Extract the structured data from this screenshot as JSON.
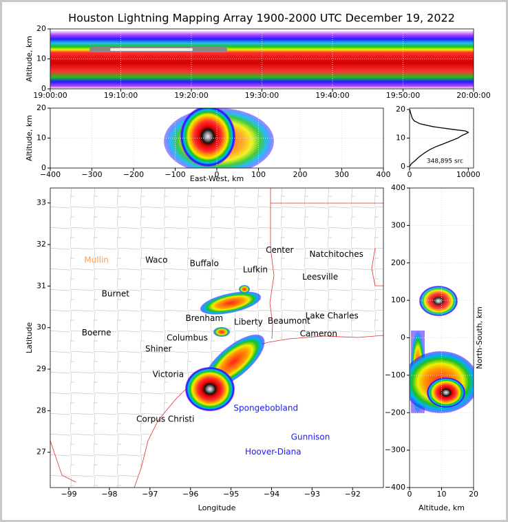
{
  "title": "Houston Lightning Mapping Array 1900-2000 UTC December 19, 2022",
  "chart_data": [
    {
      "type": "density",
      "ylabel": "Altitude, km",
      "xlim": [
        0,
        60
      ],
      "xticks": [
        {
          "value": 0,
          "label": "19:00:00"
        },
        {
          "value": 10,
          "label": "19:10:00"
        },
        {
          "value": 20,
          "label": "19:20:00"
        },
        {
          "value": 30,
          "label": "19:30:00"
        },
        {
          "value": 40,
          "label": "19:40:00"
        },
        {
          "value": 50,
          "label": "19:50:00"
        },
        {
          "value": 60,
          "label": "20:00:00"
        }
      ],
      "ylim": [
        0,
        20
      ],
      "yticks": [
        0,
        10,
        20
      ],
      "grid": true
    },
    {
      "type": "density",
      "xlabel": "East-West, km",
      "ylabel": "Altitude, km",
      "xlim": [
        -400,
        400
      ],
      "xticks": [
        {
          "value": -400,
          "label": "−400"
        },
        {
          "value": -300,
          "label": "−300"
        },
        {
          "value": -200,
          "label": "−200"
        },
        {
          "value": -100,
          "label": "−100"
        },
        0,
        100,
        200,
        300,
        400
      ],
      "ylim": [
        0,
        20
      ],
      "yticks": [
        0,
        10,
        20
      ],
      "grid": true
    },
    {
      "type": "line",
      "annotation": "348,895 src",
      "xlim": [
        0,
        10900
      ],
      "xticks": [
        0,
        10000
      ],
      "ylim": [
        -0.5,
        20.5
      ],
      "yticks": [
        0,
        10,
        20
      ],
      "grid": true,
      "series": [
        {
          "color": "#000000",
          "x": [
            0,
            1,
            2,
            3,
            4,
            5,
            6,
            7,
            8,
            9,
            10,
            11,
            11.5,
            12,
            12.5,
            13,
            14,
            15,
            16,
            17,
            18,
            19,
            20
          ],
          "values": [
            0,
            300,
            900,
            1400,
            2000,
            2700,
            3500,
            4500,
            5800,
            7000,
            8200,
            9000,
            9600,
            10000,
            9500,
            7500,
            4000,
            1800,
            800,
            450,
            300,
            150,
            50
          ]
        }
      ]
    },
    {
      "type": "map",
      "xlabel": "Longitude",
      "ylabel": "Latitude",
      "xlim": [
        -99.46,
        -91.24
      ],
      "xticks": [
        {
          "value": -99,
          "label": "−99"
        },
        {
          "value": -98,
          "label": "−98"
        },
        {
          "value": -97,
          "label": "−97"
        },
        {
          "value": -96,
          "label": "−96"
        },
        {
          "value": -95,
          "label": "−95"
        },
        {
          "value": -94,
          "label": "−94"
        },
        {
          "value": -93,
          "label": "−93"
        },
        {
          "value": -92,
          "label": "−92"
        }
      ],
      "ylim": [
        26.15,
        33.36
      ],
      "yticks": [
        27,
        28,
        29,
        30,
        31,
        32,
        33
      ],
      "grid": false,
      "places": [
        {
          "name": "Mullin",
          "lon": -98.32,
          "lat": 31.62,
          "color": "#f4a05a"
        },
        {
          "name": "Waco",
          "lon": -96.84,
          "lat": 31.62,
          "color": "#000000"
        },
        {
          "name": "Buffalo",
          "lon": -95.66,
          "lat": 31.54,
          "color": "#000000"
        },
        {
          "name": "Lufkin",
          "lon": -94.4,
          "lat": 31.39,
          "color": "#000000"
        },
        {
          "name": "Center",
          "lon": -93.8,
          "lat": 31.86,
          "color": "#000000"
        },
        {
          "name": "Natchitoches",
          "lon": -92.4,
          "lat": 31.76,
          "color": "#000000"
        },
        {
          "name": "Leesville",
          "lon": -92.8,
          "lat": 31.21,
          "color": "#000000"
        },
        {
          "name": "Burnet",
          "lon": -97.85,
          "lat": 30.81,
          "color": "#000000"
        },
        {
          "name": "Brenham",
          "lon": -95.66,
          "lat": 30.22,
          "color": "#000000"
        },
        {
          "name": "Liberty",
          "lon": -94.57,
          "lat": 30.13,
          "color": "#000000"
        },
        {
          "name": "Beaumont",
          "lon": -93.57,
          "lat": 30.15,
          "color": "#000000"
        },
        {
          "name": "Lake Charles",
          "lon": -92.51,
          "lat": 30.28,
          "color": "#000000"
        },
        {
          "name": "Cameron",
          "lon": -92.84,
          "lat": 29.85,
          "color": "#000000"
        },
        {
          "name": "Boerne",
          "lon": -98.32,
          "lat": 29.87,
          "color": "#000000"
        },
        {
          "name": "Columbus",
          "lon": -96.08,
          "lat": 29.75,
          "color": "#000000"
        },
        {
          "name": "Shiner",
          "lon": -96.79,
          "lat": 29.48,
          "color": "#000000"
        },
        {
          "name": "Victoria",
          "lon": -96.55,
          "lat": 28.87,
          "color": "#000000"
        },
        {
          "name": "Corpus Christi",
          "lon": -96.62,
          "lat": 27.79,
          "color": "#000000"
        },
        {
          "name": "Spongebobland",
          "lon": -94.14,
          "lat": 28.06,
          "color": "#1a1aff"
        },
        {
          "name": "Gunnison",
          "lon": -93.04,
          "lat": 27.36,
          "color": "#1a1aff"
        },
        {
          "name": "Hoover-Diana",
          "lon": -93.96,
          "lat": 27.0,
          "color": "#1a1aff"
        }
      ]
    },
    {
      "type": "density",
      "xlabel": "Altitude, km",
      "ylabel": "North-South, km",
      "xlim": [
        0,
        20
      ],
      "xticks": [
        0,
        10,
        20
      ],
      "ylim": [
        -400,
        400
      ],
      "yticks": [
        {
          "value": -400,
          "label": "−400"
        },
        {
          "value": -300,
          "label": "−300"
        },
        {
          "value": -200,
          "label": "−200"
        },
        {
          "value": -100,
          "label": "−100"
        },
        0,
        100,
        200,
        300,
        400
      ],
      "grid": true
    }
  ]
}
